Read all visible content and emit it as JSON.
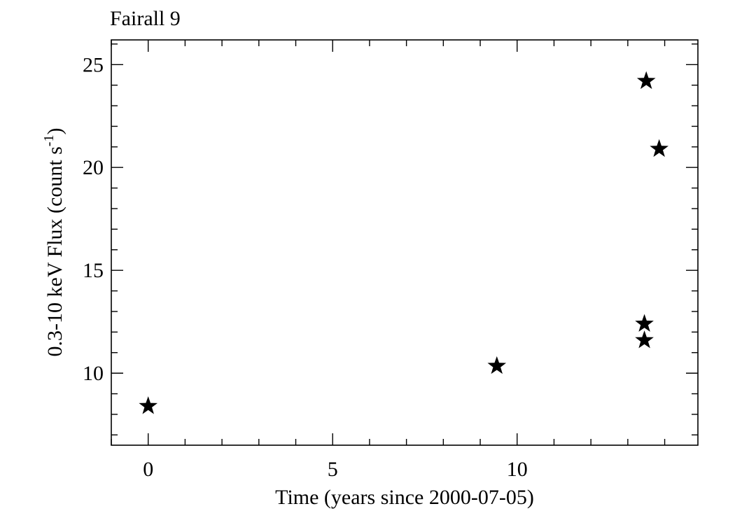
{
  "chart_data": {
    "type": "scatter",
    "title": "Fairall 9",
    "xlabel": "Time (years since 2000-07-05)",
    "ylabel_main": "0.3-10 keV Flux (count s",
    "ylabel_sup": "-1",
    "ylabel_close": ")",
    "xlim": [
      -1.0,
      14.9
    ],
    "ylim": [
      6.5,
      26.2
    ],
    "x_major_ticks": [
      0,
      5,
      10
    ],
    "x_tick_labels": [
      "0",
      "5",
      "10"
    ],
    "x_minor_ticks": [
      -1,
      1,
      2,
      3,
      4,
      6,
      7,
      8,
      9,
      11,
      12,
      13,
      14
    ],
    "y_major_ticks": [
      10,
      15,
      20,
      25
    ],
    "y_tick_labels": [
      "10",
      "15",
      "20",
      "25"
    ],
    "y_minor_ticks": [
      7,
      8,
      9,
      11,
      12,
      13,
      14,
      16,
      17,
      18,
      19,
      21,
      22,
      23,
      24,
      26
    ],
    "marker": "star",
    "grid": false,
    "points": [
      {
        "x": 0.0,
        "y": 8.4
      },
      {
        "x": 9.45,
        "y": 10.35
      },
      {
        "x": 13.45,
        "y": 11.6
      },
      {
        "x": 13.45,
        "y": 12.4
      },
      {
        "x": 13.5,
        "y": 24.2
      },
      {
        "x": 13.85,
        "y": 20.9
      }
    ]
  }
}
